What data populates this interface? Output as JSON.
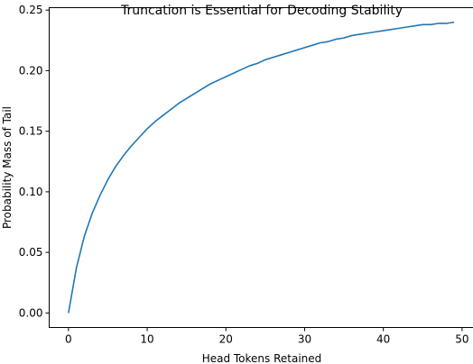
{
  "chart_data": {
    "type": "line",
    "title": "Truncation is Essential for Decoding Stability",
    "xlabel": "Head Tokens Retained",
    "ylabel": "Probability Mass of Tail",
    "xlim": [
      -2.45,
      51.45
    ],
    "ylim": [
      -0.012,
      0.252
    ],
    "xticks": [
      0,
      10,
      20,
      30,
      40,
      50
    ],
    "xtick_labels": [
      "0",
      "10",
      "20",
      "30",
      "40",
      "50"
    ],
    "yticks": [
      0.0,
      0.05,
      0.1,
      0.15,
      0.2,
      0.25
    ],
    "ytick_labels": [
      "0.00",
      "0.05",
      "0.10",
      "0.15",
      "0.20",
      "0.25"
    ],
    "grid": false,
    "legend": "none",
    "series_color": "#1f77b4",
    "x": [
      0,
      1,
      2,
      3,
      4,
      5,
      6,
      7,
      8,
      9,
      10,
      11,
      12,
      13,
      14,
      15,
      16,
      17,
      18,
      19,
      20,
      21,
      22,
      23,
      24,
      25,
      26,
      27,
      28,
      29,
      30,
      31,
      32,
      33,
      34,
      35,
      36,
      37,
      38,
      39,
      40,
      41,
      42,
      43,
      44,
      45,
      46,
      47,
      48,
      49
    ],
    "y": [
      0.0,
      0.037,
      0.063,
      0.082,
      0.097,
      0.11,
      0.121,
      0.13,
      0.138,
      0.145,
      0.152,
      0.158,
      0.163,
      0.168,
      0.173,
      0.177,
      0.181,
      0.185,
      0.189,
      0.192,
      0.195,
      0.198,
      0.201,
      0.204,
      0.206,
      0.209,
      0.211,
      0.213,
      0.215,
      0.217,
      0.219,
      0.221,
      0.223,
      0.224,
      0.226,
      0.227,
      0.229,
      0.23,
      0.231,
      0.232,
      0.233,
      0.234,
      0.235,
      0.236,
      0.237,
      0.238,
      0.238,
      0.239,
      0.239,
      0.24
    ]
  }
}
